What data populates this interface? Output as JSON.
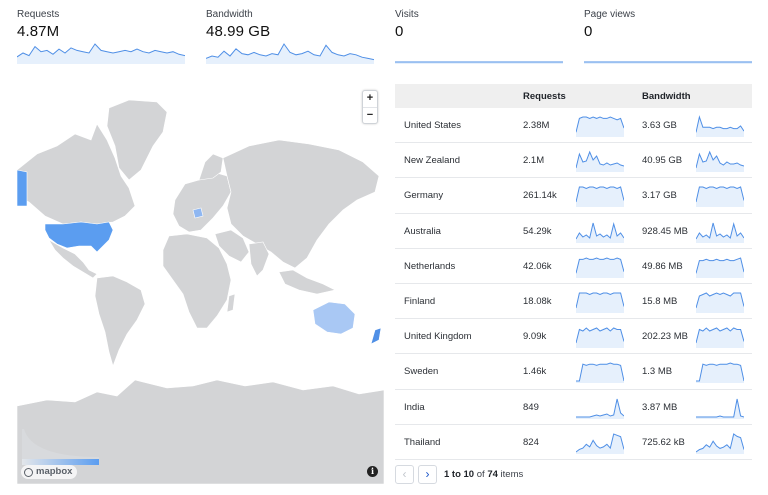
{
  "stats": [
    {
      "label": "Requests",
      "value": "4.87M",
      "spark": [
        4,
        7,
        5,
        12,
        8,
        9,
        6,
        10,
        7,
        11,
        9,
        8,
        7,
        14,
        9,
        8,
        7,
        8,
        9,
        8,
        10,
        8,
        7,
        9,
        8,
        7,
        8,
        6,
        5
      ]
    },
    {
      "label": "Bandwidth",
      "value": "48.99 GB",
      "spark": [
        3,
        5,
        4,
        9,
        5,
        11,
        7,
        6,
        8,
        6,
        5,
        7,
        6,
        15,
        8,
        6,
        7,
        9,
        6,
        5,
        14,
        8,
        6,
        5,
        7,
        6,
        4,
        3,
        2
      ]
    },
    {
      "label": "Visits",
      "value": "0",
      "spark": [
        0,
        0,
        0,
        0,
        0,
        0,
        0,
        0,
        0,
        0
      ]
    },
    {
      "label": "Page views",
      "value": "0",
      "spark": [
        0,
        0,
        0,
        0,
        0,
        0,
        0,
        0,
        0,
        0
      ]
    }
  ],
  "map": {
    "zoom_in": "+",
    "zoom_out": "−",
    "attribution": "mapbox",
    "info": "i",
    "legend_colors": [
      "#e3e6ea",
      "#5b9df0"
    ],
    "highlight_color": "#5b9df0",
    "land_color": "#d3d4d6"
  },
  "table": {
    "headers": {
      "country": "",
      "requests": "Requests",
      "bandwidth": "Bandwidth"
    },
    "rows": [
      {
        "country": "United States",
        "requests": "2.38M",
        "bandwidth": "3.63 GB",
        "req_spark": [
          2,
          12,
          13,
          13,
          12,
          13,
          12,
          13,
          12,
          12,
          13,
          12,
          11,
          12,
          5
        ],
        "bw_spark": [
          2,
          14,
          6,
          6,
          6,
          5,
          6,
          6,
          5,
          5,
          6,
          5,
          5,
          7,
          3
        ]
      },
      {
        "country": "New Zealand",
        "requests": "2.1M",
        "bandwidth": "40.95 GB",
        "req_spark": [
          2,
          16,
          8,
          9,
          18,
          10,
          14,
          6,
          5,
          7,
          5,
          6,
          7,
          5,
          4
        ],
        "bw_spark": [
          2,
          16,
          8,
          9,
          18,
          10,
          14,
          7,
          5,
          8,
          6,
          6,
          7,
          5,
          4
        ]
      },
      {
        "country": "Germany",
        "requests": "261.14k",
        "bandwidth": "3.17 GB",
        "req_spark": [
          2,
          12,
          12,
          11,
          12,
          12,
          11,
          12,
          12,
          11,
          12,
          12,
          11,
          12,
          3
        ],
        "bw_spark": [
          2,
          12,
          12,
          11,
          12,
          12,
          11,
          12,
          12,
          11,
          12,
          12,
          11,
          12,
          3
        ]
      },
      {
        "country": "Australia",
        "requests": "54.29k",
        "bandwidth": "928.45 MB",
        "req_spark": [
          2,
          8,
          4,
          6,
          3,
          18,
          5,
          7,
          4,
          6,
          3,
          17,
          5,
          8,
          3
        ],
        "bw_spark": [
          2,
          8,
          4,
          6,
          3,
          18,
          5,
          7,
          4,
          6,
          3,
          17,
          5,
          8,
          3
        ]
      },
      {
        "country": "Netherlands",
        "requests": "42.06k",
        "bandwidth": "49.86 MB",
        "req_spark": [
          2,
          12,
          12,
          13,
          12,
          12,
          13,
          12,
          12,
          13,
          12,
          12,
          13,
          12,
          3
        ],
        "bw_spark": [
          2,
          12,
          12,
          13,
          12,
          12,
          13,
          12,
          12,
          13,
          12,
          12,
          13,
          14,
          3
        ]
      },
      {
        "country": "Finland",
        "requests": "18.08k",
        "bandwidth": "15.8 MB",
        "req_spark": [
          2,
          12,
          12,
          12,
          11,
          12,
          12,
          11,
          12,
          12,
          11,
          12,
          12,
          12,
          3
        ],
        "bw_spark": [
          2,
          10,
          11,
          12,
          10,
          11,
          12,
          11,
          12,
          11,
          10,
          12,
          12,
          12,
          3
        ]
      },
      {
        "country": "United Kingdom",
        "requests": "9.09k",
        "bandwidth": "202.23 MB",
        "req_spark": [
          2,
          11,
          10,
          12,
          10,
          11,
          12,
          10,
          11,
          12,
          10,
          12,
          11,
          11,
          3
        ],
        "bw_spark": [
          2,
          11,
          10,
          12,
          10,
          11,
          12,
          10,
          11,
          12,
          10,
          12,
          11,
          11,
          3
        ]
      },
      {
        "country": "Sweden",
        "requests": "1.46k",
        "bandwidth": "1.3 MB",
        "req_spark": [
          0,
          0,
          14,
          13,
          14,
          14,
          13,
          14,
          14,
          14,
          15,
          14,
          14,
          13,
          0
        ],
        "bw_spark": [
          0,
          0,
          14,
          13,
          14,
          14,
          13,
          14,
          14,
          14,
          15,
          14,
          14,
          13,
          0
        ]
      },
      {
        "country": "India",
        "requests": "849",
        "bandwidth": "3.87 MB",
        "req_spark": [
          0,
          0,
          0,
          0,
          0,
          1,
          2,
          1,
          2,
          3,
          1,
          2,
          18,
          4,
          1
        ],
        "bw_spark": [
          0,
          0,
          0,
          0,
          0,
          0,
          0,
          1,
          0,
          0,
          0,
          0,
          18,
          1,
          0
        ]
      },
      {
        "country": "Thailand",
        "requests": "824",
        "bandwidth": "725.62 kB",
        "req_spark": [
          0,
          2,
          3,
          6,
          4,
          9,
          5,
          3,
          4,
          6,
          3,
          14,
          13,
          12,
          2
        ],
        "bw_spark": [
          0,
          2,
          3,
          6,
          4,
          9,
          5,
          3,
          4,
          6,
          3,
          15,
          13,
          12,
          2
        ]
      }
    ]
  },
  "pager": {
    "prev": "‹",
    "next": "›",
    "range": "1 to 10",
    "of_label": "of",
    "total": "74",
    "items_label": "items"
  },
  "colors": {
    "spark_line": "#4f8fe6",
    "spark_fill": "#e6f0fc"
  }
}
